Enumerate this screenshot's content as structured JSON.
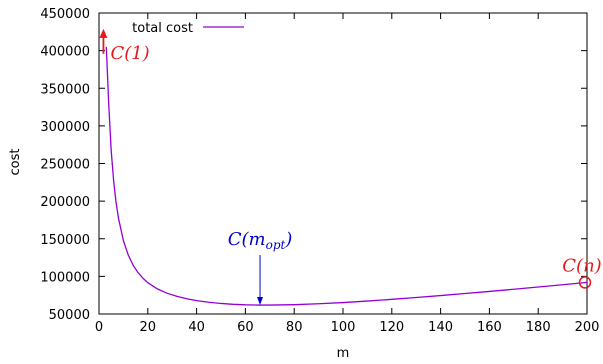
{
  "chart_data": {
    "type": "line",
    "xlabel": "m",
    "ylabel": "cost",
    "xlim": [
      0,
      200
    ],
    "ylim": [
      50000,
      450000
    ],
    "x_ticks": [
      "0",
      "20",
      "40",
      "60",
      "80",
      "100",
      "120",
      "140",
      "160",
      "180",
      "200"
    ],
    "y_ticks": [
      "50000",
      "100000",
      "150000",
      "200000",
      "250000",
      "300000",
      "350000",
      "400000",
      "450000"
    ],
    "grid": false,
    "legend_position": "top-left",
    "series": [
      {
        "name": "total cost",
        "color": "#9400d3",
        "x": [
          3,
          4,
          5,
          6,
          7,
          8,
          10,
          12,
          14,
          16,
          18,
          20,
          24,
          28,
          32,
          36,
          40,
          45,
          50,
          55,
          60,
          65,
          70,
          80,
          90,
          100,
          110,
          120,
          130,
          140,
          150,
          160,
          170,
          180,
          190,
          200
        ],
        "y": [
          405000,
          328000,
          267000,
          227000,
          198000,
          177000,
          147500,
          128300,
          114800,
          105000,
          97500,
          91600,
          83200,
          77500,
          73400,
          70300,
          67800,
          65600,
          64000,
          62900,
          62200,
          61900,
          61900,
          62400,
          63600,
          65200,
          67200,
          69500,
          71900,
          74500,
          77200,
          80000,
          82900,
          85900,
          88900,
          92000
        ]
      }
    ],
    "annotations": [
      {
        "label_main": "C(1)",
        "color": "#e41a1c",
        "x": 1,
        "y": 425000,
        "marker": "up-arrow"
      },
      {
        "label_main": "C(m",
        "label_sub": "opt",
        "label_close": ")",
        "color": "#0000cc",
        "x": 66,
        "y": 62000,
        "marker": "down-arrow"
      },
      {
        "label_main": "C(n)",
        "color": "#e41a1c",
        "x": 200,
        "y": 92000,
        "marker": "circle"
      }
    ]
  }
}
